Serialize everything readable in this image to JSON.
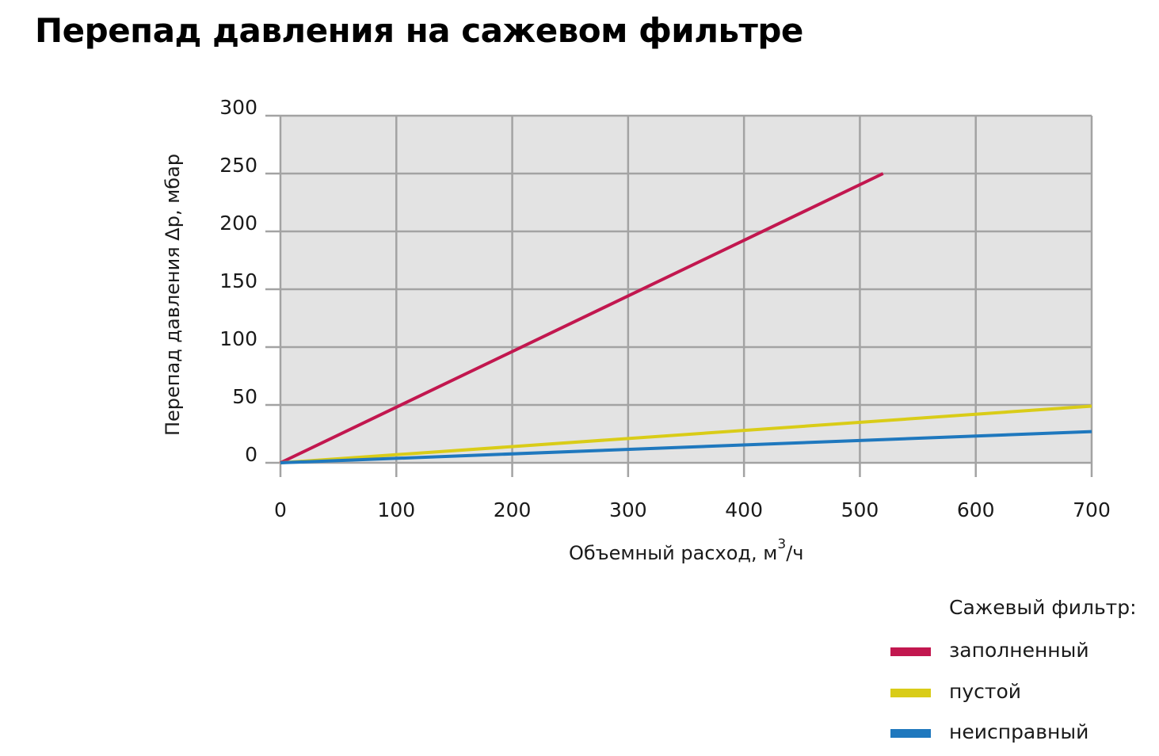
{
  "title": "Перепад давления на сажевом фильтре",
  "chart_data": {
    "type": "line",
    "xlabel": "Объемный расход, м",
    "xlabel_superscript": "3",
    "xlabel_suffix": "/ч",
    "ylabel": "Перепад давления Δp, мбар",
    "xlim": [
      0,
      700
    ],
    "ylim": [
      0,
      300
    ],
    "x_ticks": [
      0,
      100,
      200,
      300,
      400,
      500,
      600,
      700
    ],
    "y_ticks": [
      0,
      50,
      100,
      150,
      200,
      250,
      300
    ],
    "grid": true,
    "series": [
      {
        "name": "заполненный",
        "color": "#c2174f",
        "x": [
          0,
          520
        ],
        "y": [
          0,
          250
        ]
      },
      {
        "name": "пустой",
        "color": "#d9cc18",
        "x": [
          0,
          700
        ],
        "y": [
          0,
          49
        ]
      },
      {
        "name": "неисправный",
        "color": "#1f78be",
        "x": [
          0,
          700
        ],
        "y": [
          0,
          27
        ]
      }
    ],
    "legend": {
      "title": "Сажевый фильтр:",
      "placement": "bottom-right"
    }
  }
}
